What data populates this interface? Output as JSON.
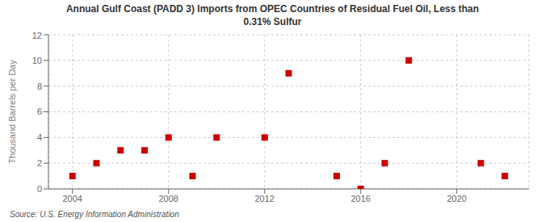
{
  "chart_data": {
    "type": "scatter",
    "title": "Annual Gulf Coast (PADD 3) Imports from OPEC Countries of Residual Fuel Oil, Less than\n0.31% Sulfur",
    "ylabel": "Thousand Barrels per Day",
    "source": "Source: U.S. Energy Information Administration",
    "x": [
      2004,
      2005,
      2006,
      2007,
      2008,
      2009,
      2010,
      2012,
      2013,
      2015,
      2016,
      2017,
      2018,
      2021,
      2022
    ],
    "values": [
      1,
      2,
      3,
      3,
      4,
      1,
      4,
      4,
      9,
      1,
      0,
      2,
      10,
      2,
      1
    ],
    "color": "#cc0000",
    "marker": "square",
    "xlim": [
      2003,
      2023
    ],
    "ylim": [
      0,
      12
    ],
    "xticks": [
      2004,
      2008,
      2012,
      2016,
      2020
    ],
    "yticks": [
      0,
      2,
      4,
      6,
      8,
      10,
      12
    ],
    "grid": true
  }
}
